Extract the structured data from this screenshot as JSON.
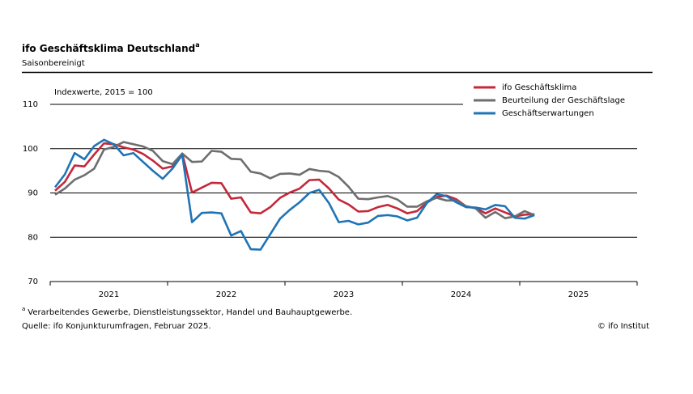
{
  "chart_data": {
    "type": "line",
    "title": "ifo Geschäftsklima Deutschland",
    "title_footnote_mark": "a",
    "subtitle": "Saisonbereinigt",
    "y_label": "Indexwerte, 2015 = 100",
    "categories": [
      "2021",
      null,
      null,
      null,
      null,
      null,
      null,
      null,
      null,
      null,
      null,
      null,
      "2022",
      null,
      null,
      null,
      null,
      null,
      null,
      null,
      null,
      null,
      null,
      null,
      "2023",
      null,
      null,
      null,
      null,
      null,
      null,
      null,
      null,
      null,
      null,
      null,
      "2024",
      null,
      null,
      null,
      null,
      null,
      null,
      null,
      null,
      null,
      null,
      null,
      "2025",
      null,
      null,
      null,
      null,
      null,
      null,
      null,
      null,
      null,
      null,
      null
    ],
    "series": [
      {
        "name": "ifo Geschäftsklima",
        "color": "#c4283a",
        "values": [
          90.5,
          92.5,
          96.2,
          96.0,
          98.7,
          101.2,
          101.0,
          100.3,
          99.8,
          98.8,
          97.3,
          95.5,
          96.0,
          98.9,
          90.1,
          91.2,
          92.3,
          92.2,
          88.7,
          89.0,
          85.6,
          85.4,
          86.8,
          88.9,
          90.1,
          91.0,
          92.9,
          93.0,
          91.0,
          88.5,
          87.4,
          85.8,
          85.9,
          86.8,
          87.3,
          86.5,
          85.4,
          85.9,
          87.8,
          89.1,
          89.4,
          88.6,
          87.0,
          86.6,
          85.4,
          86.5,
          85.6,
          84.7,
          85.1,
          85.2,
          null,
          null,
          null,
          null,
          null,
          null,
          null,
          null,
          null,
          null
        ]
      },
      {
        "name": "Beurteilung der Geschäftslage",
        "color": "#6e6e6e",
        "values": [
          89.6,
          91.0,
          93.0,
          94.0,
          95.5,
          99.8,
          100.4,
          101.5,
          101.0,
          100.5,
          99.5,
          97.2,
          96.5,
          98.9,
          97.0,
          97.1,
          99.5,
          99.3,
          97.7,
          97.6,
          94.8,
          94.4,
          93.3,
          94.3,
          94.4,
          94.1,
          95.4,
          95.0,
          94.8,
          93.6,
          91.4,
          88.7,
          88.6,
          89.0,
          89.3,
          88.5,
          86.9,
          86.9,
          88.1,
          88.9,
          88.3,
          88.3,
          87.0,
          86.5,
          84.4,
          85.7,
          84.3,
          84.7,
          85.9,
          85.0,
          null,
          null,
          null,
          null,
          null,
          null,
          null,
          null,
          null,
          null
        ]
      },
      {
        "name": "Geschäftserwartungen",
        "color": "#1f74b6",
        "values": [
          91.3,
          94.2,
          99.0,
          97.6,
          100.6,
          102.0,
          101.0,
          98.5,
          99.0,
          97.0,
          95.0,
          93.2,
          95.5,
          98.6,
          83.4,
          85.5,
          85.6,
          85.4,
          80.4,
          81.4,
          77.3,
          77.2,
          80.7,
          84.2,
          86.2,
          87.9,
          90.0,
          90.7,
          87.7,
          83.4,
          83.7,
          82.9,
          83.3,
          84.8,
          85.0,
          84.7,
          83.8,
          84.4,
          87.7,
          89.7,
          89.3,
          87.9,
          86.8,
          86.7,
          86.3,
          87.3,
          87.0,
          84.4,
          84.2,
          85.0,
          null,
          null,
          null,
          null,
          null,
          null,
          null,
          null,
          null,
          null
        ]
      }
    ],
    "ylim": [
      70,
      110
    ],
    "yticks": [
      70,
      80,
      90,
      100,
      110
    ],
    "grid": true,
    "legend": "top-right",
    "footnote": "Verarbeitendes Gewerbe, Dienstleistungssektor, Handel und Bauhauptgewerbe.",
    "source": "Quelle: ifo Konjunkturumfragen, Februar 2025.",
    "credit": "© ifo Institut"
  }
}
